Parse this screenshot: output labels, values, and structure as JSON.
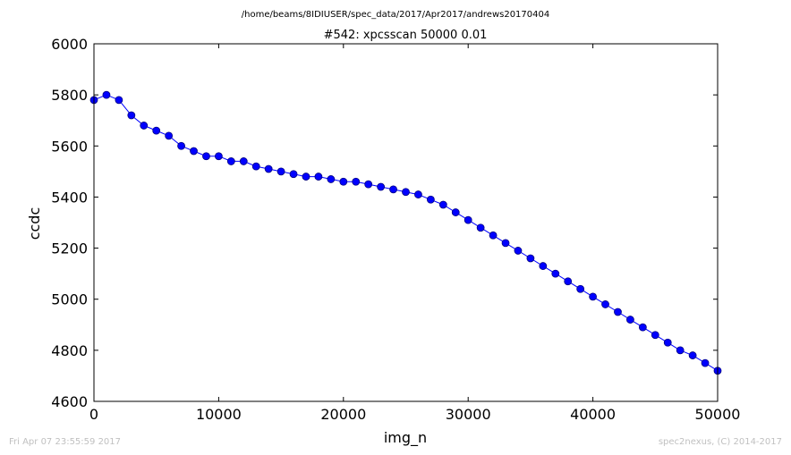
{
  "header": {
    "path": "/home/beams/8IDIUSER/spec_data/2017/Apr2017/andrews20170404"
  },
  "footer": {
    "left": "Fri Apr 07 23:55:59 2017",
    "right": "spec2nexus, (C) 2014-2017"
  },
  "colors": {
    "series": "#0000ff",
    "marker_edge": "#00007f",
    "axis": "#000000"
  },
  "chart_data": {
    "type": "line",
    "title": "#542: xpcsscan 50000 0.01",
    "xlabel": "img_n",
    "ylabel": "ccdc",
    "xlim": [
      0,
      50000
    ],
    "ylim": [
      4600,
      6000
    ],
    "xticks": [
      0,
      10000,
      20000,
      30000,
      40000,
      50000
    ],
    "yticks": [
      4600,
      4800,
      5000,
      5200,
      5400,
      5600,
      5800,
      6000
    ],
    "grid": false,
    "marker": "circle",
    "series": [
      {
        "x": [
          0,
          1000,
          2000,
          3000,
          4000,
          5000,
          6000,
          7000,
          8000,
          9000,
          10000,
          11000,
          12000,
          13000,
          14000,
          15000,
          16000,
          17000,
          18000,
          19000,
          20000,
          21000,
          22000,
          23000,
          24000,
          25000,
          26000,
          27000,
          28000,
          29000,
          30000,
          31000,
          32000,
          33000,
          34000,
          35000,
          36000,
          37000,
          38000,
          39000,
          40000,
          41000,
          42000,
          43000,
          44000,
          45000,
          46000,
          47000,
          48000,
          49000,
          50000
        ],
        "y": [
          5780,
          5800,
          5780,
          5720,
          5680,
          5660,
          5640,
          5600,
          5580,
          5560,
          5560,
          5540,
          5540,
          5520,
          5510,
          5500,
          5490,
          5480,
          5480,
          5470,
          5460,
          5460,
          5450,
          5440,
          5430,
          5420,
          5410,
          5390,
          5370,
          5340,
          5310,
          5280,
          5250,
          5220,
          5190,
          5160,
          5130,
          5100,
          5070,
          5040,
          5010,
          4980,
          4950,
          4920,
          4890,
          4860,
          4830,
          4800,
          4780,
          4750,
          4720
        ]
      }
    ]
  }
}
